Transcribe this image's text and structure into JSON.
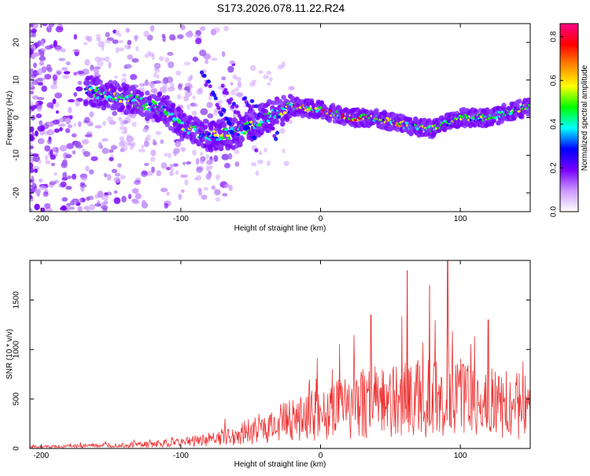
{
  "title": "S173.2026.078.11.22.R24",
  "chart_data": [
    {
      "type": "heatmap",
      "xlabel": "Height of straight line (km)",
      "ylabel": "Frequency (Hz)",
      "xlim": [
        -208,
        150
      ],
      "ylim": [
        -25,
        25
      ],
      "xticks": [
        -200,
        -100,
        0,
        100
      ],
      "yticks": [
        20,
        10,
        0,
        -10,
        -20
      ],
      "colorbar": {
        "label": "Normalized spectral amplitude",
        "range": [
          0.0,
          0.86
        ],
        "ticks": [
          "0.0",
          "0.2",
          "0.4",
          "0.6",
          "0.8"
        ],
        "tick_values": [
          0.0,
          0.2,
          0.4,
          0.6,
          0.8
        ],
        "colors": [
          "#ffffff",
          "#cc99ff",
          "#7700ff",
          "#0000ff",
          "#00ffff",
          "#00ff00",
          "#ffff00",
          "#ff8800",
          "#ff0000",
          "#ff0088"
        ]
      },
      "ridge": {
        "x": [
          -165,
          -150,
          -130,
          -110,
          -100,
          -80,
          -60,
          -40,
          -20,
          0,
          20,
          40,
          60,
          80,
          100,
          120,
          150
        ],
        "y": [
          7,
          6,
          4,
          2,
          -2,
          -5,
          -4,
          0,
          3,
          2,
          0,
          0,
          -2,
          -3,
          0,
          0,
          3
        ]
      }
    },
    {
      "type": "line",
      "xlabel": "Height of straight line (km)",
      "ylabel": "SNR (10 * v/v)",
      "xlim": [
        -208,
        150
      ],
      "ylim": [
        0,
        1900
      ],
      "xticks": [
        -200,
        -100,
        0,
        100
      ],
      "yticks": [
        0,
        500,
        1000,
        1500
      ],
      "series_color": "#ee3333",
      "envelope": {
        "x": [
          -208,
          -160,
          -120,
          -100,
          -80,
          -60,
          -40,
          -20,
          0,
          20,
          40,
          60,
          80,
          100,
          120,
          150
        ],
        "y": [
          20,
          40,
          60,
          90,
          130,
          200,
          300,
          420,
          500,
          600,
          700,
          720,
          720,
          700,
          650,
          600
        ]
      },
      "peaks": [
        {
          "x": 36,
          "y": 1350
        },
        {
          "x": 62,
          "y": 1800
        },
        {
          "x": 78,
          "y": 1650
        },
        {
          "x": 91,
          "y": 1900
        },
        {
          "x": 120,
          "y": 1300
        }
      ]
    }
  ]
}
